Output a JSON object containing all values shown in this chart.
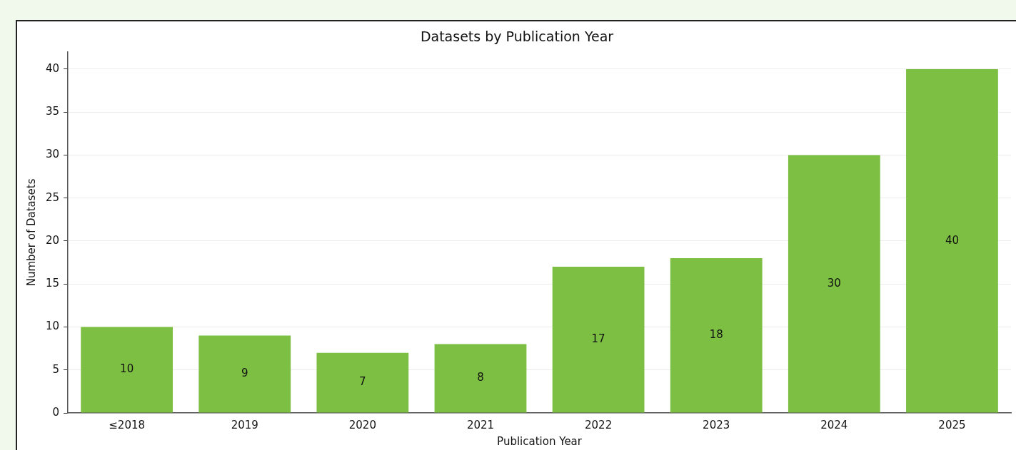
{
  "chart_data": {
    "type": "bar",
    "title": "Datasets by Publication Year",
    "xlabel": "Publication Year",
    "ylabel": "Number of Datasets",
    "categories": [
      "≤2018",
      "2019",
      "2020",
      "2021",
      "2022",
      "2023",
      "2024",
      "2025"
    ],
    "values": [
      10,
      9,
      7,
      8,
      17,
      18,
      30,
      40
    ],
    "color": "#7cbf42",
    "ylim": [
      0,
      42
    ],
    "yticks": [
      0,
      5,
      10,
      15,
      20,
      25,
      30,
      35,
      40
    ],
    "grid": "y",
    "data_labels": true,
    "legend": false
  }
}
